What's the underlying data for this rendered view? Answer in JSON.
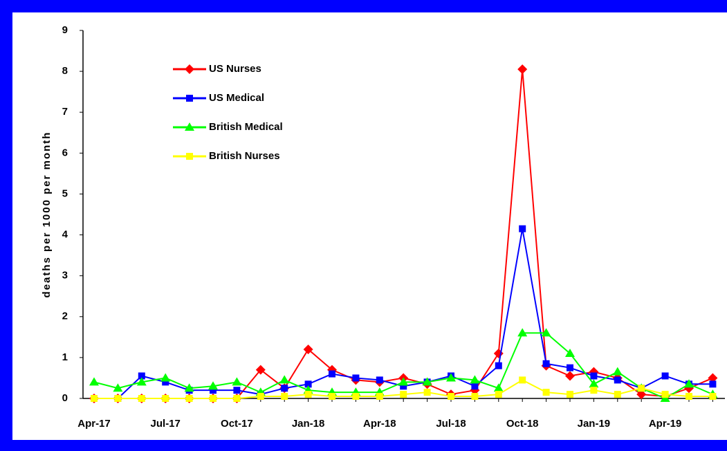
{
  "chart_data": {
    "type": "line",
    "y_label": "deaths per 1000 per month",
    "categories": [
      "Apr-17",
      null,
      null,
      "Jul-17",
      null,
      null,
      "Oct-17",
      null,
      null,
      "Jan-18",
      null,
      null,
      "Apr-18",
      null,
      null,
      "Jul-18",
      null,
      null,
      "Oct-18",
      null,
      null,
      "Jan-19",
      null,
      null,
      "Apr-19",
      null,
      null
    ],
    "ylim": [
      0,
      9
    ],
    "yticks": [
      0,
      1,
      2,
      3,
      4,
      5,
      6,
      7,
      8,
      9
    ],
    "legend": "upper left",
    "series": [
      {
        "name": "US Nurses",
        "color": "#ff0000",
        "marker": "diamond",
        "values": [
          0,
          0,
          0,
          0,
          0,
          0,
          0,
          0.7,
          0.25,
          1.2,
          0.7,
          0.45,
          0.4,
          0.5,
          0.35,
          0.1,
          0.2,
          1.1,
          8.05,
          0.8,
          0.55,
          0.65,
          0.5,
          0.1,
          0.05,
          0.25,
          0.5
        ]
      },
      {
        "name": "US Medical",
        "color": "#0000ff",
        "marker": "square",
        "values": [
          0,
          0,
          0.55,
          0.4,
          0.2,
          0.2,
          0.2,
          0.1,
          0.25,
          0.35,
          0.6,
          0.5,
          0.45,
          0.3,
          0.4,
          0.55,
          0.3,
          0.8,
          4.15,
          0.85,
          0.75,
          0.55,
          0.45,
          0.25,
          0.55,
          0.35,
          0.35
        ]
      },
      {
        "name": "British Medical",
        "color": "#00ff00",
        "marker": "triangle",
        "values": [
          0.4,
          0.25,
          0.4,
          0.5,
          0.25,
          0.3,
          0.4,
          0.15,
          0.45,
          0.2,
          0.15,
          0.15,
          0.15,
          0.4,
          0.4,
          0.5,
          0.45,
          0.25,
          1.6,
          1.6,
          1.1,
          0.35,
          0.65,
          0.25,
          0,
          0.35,
          0.1
        ]
      },
      {
        "name": "British Nurses",
        "color": "#ffff00",
        "marker": "square",
        "values": [
          0,
          0,
          0,
          0,
          0,
          0,
          0,
          0.05,
          0.05,
          0.1,
          0.05,
          0.05,
          0.05,
          0.1,
          0.15,
          0.05,
          0.05,
          0.1,
          0.45,
          0.15,
          0.1,
          0.2,
          0.1,
          0.25,
          0.1,
          0.05,
          0.05
        ]
      }
    ]
  }
}
